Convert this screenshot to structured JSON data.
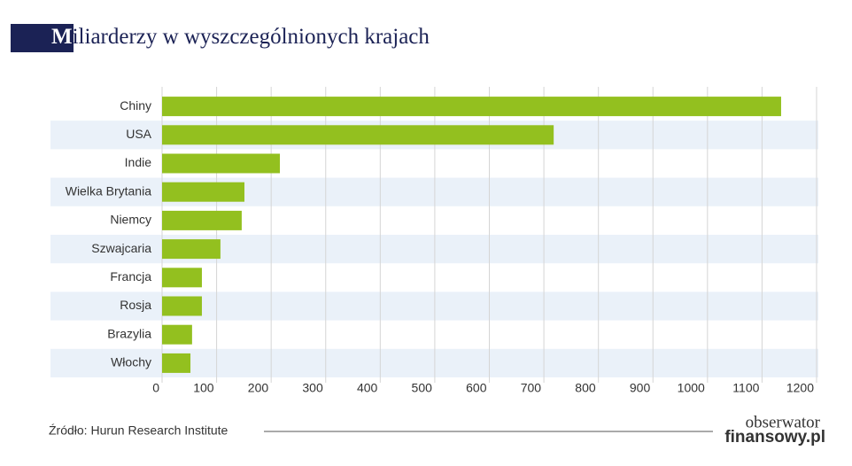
{
  "chart_data": {
    "type": "barh",
    "title": "Miliarderzy w wyszczególnionych krajach",
    "categories": [
      "Chiny",
      "USA",
      "Indie",
      "Wielka Brytania",
      "Niemcy",
      "Szwajcaria",
      "Francja",
      "Rosja",
      "Brazylia",
      "Włochy"
    ],
    "values": [
      1135,
      718,
      216,
      151,
      146,
      107,
      73,
      73,
      55,
      52
    ],
    "color": "#93c01f",
    "xlim": [
      0,
      1200
    ],
    "xticks": [
      0,
      100,
      200,
      300,
      400,
      500,
      600,
      700,
      800,
      900,
      1000,
      1100,
      1200
    ],
    "grid": true,
    "source": "Źródło: Hurun Research Institute"
  },
  "logo": [
    "obserwator",
    "finansowy.pl"
  ]
}
